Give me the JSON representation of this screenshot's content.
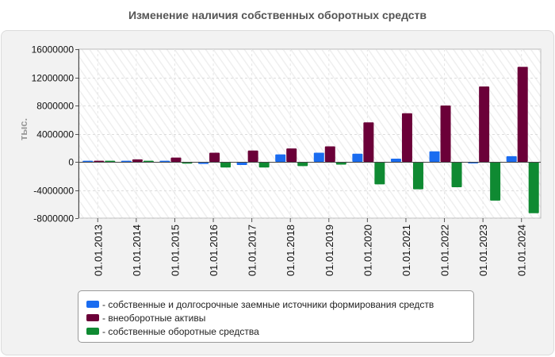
{
  "chart_data": {
    "type": "bar",
    "title": "Изменение наличия собственных оборотных средств",
    "xlabel": "",
    "ylabel": "тыс.",
    "ylim": [
      -8000000,
      16000000
    ],
    "yticks": [
      16000000,
      12000000,
      8000000,
      4000000,
      0,
      -4000000,
      -8000000
    ],
    "ytick_labels": [
      "16000000",
      "12000000",
      "8000000",
      "4000000",
      "0",
      "-4000000",
      "-8000000"
    ],
    "categories": [
      "01.01.2013",
      "01.01.2014",
      "01.01.2015",
      "01.01.2016",
      "01.01.2017",
      "01.01.2018",
      "01.01.2019",
      "01.01.2020",
      "01.01.2021",
      "01.01.2022",
      "01.01.2023",
      "01.01.2024"
    ],
    "series": [
      {
        "name": "собственные и долгосрочные заемные источники формирования средств",
        "color": "#1a6cf0",
        "values": [
          150000,
          150000,
          150000,
          -300000,
          -450000,
          1050000,
          1300000,
          1150000,
          450000,
          1500000,
          -200000,
          800000
        ]
      },
      {
        "name": "внеоборотные активы",
        "color": "#6b0038",
        "values": [
          150000,
          350000,
          600000,
          1300000,
          1600000,
          1900000,
          2200000,
          5600000,
          6900000,
          8000000,
          10700000,
          13500000
        ]
      },
      {
        "name": "собственные оборотные средства",
        "color": "#0f8a32",
        "values": [
          150000,
          150000,
          -250000,
          -800000,
          -800000,
          -600000,
          -400000,
          -3200000,
          -3900000,
          -3600000,
          -5500000,
          -7300000
        ]
      }
    ],
    "grid": true,
    "legend_position": "bottom"
  }
}
